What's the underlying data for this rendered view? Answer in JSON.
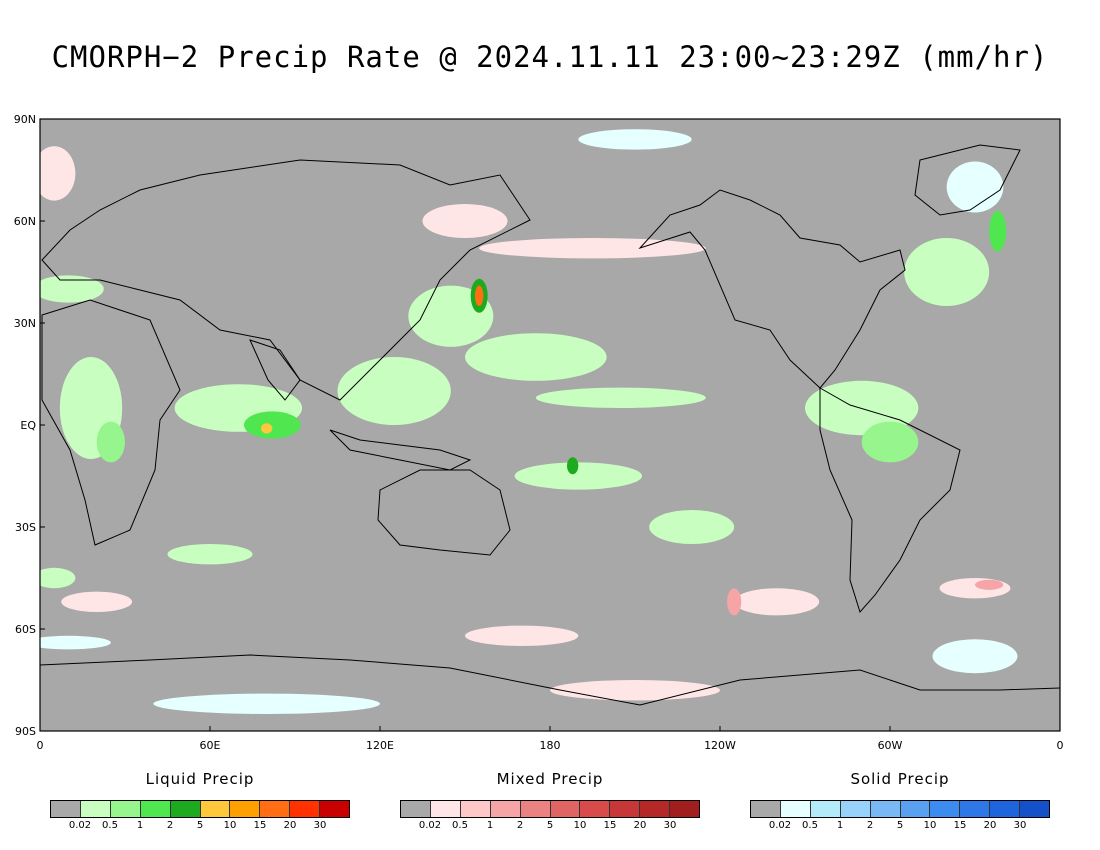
{
  "title": "CMORPH−2 Precip Rate @ 2024.11.11 23:00~23:29Z (mm/hr)",
  "lat_labels": [
    "90N",
    "60N",
    "30N",
    "EQ",
    "30S",
    "60S",
    "90S"
  ],
  "lon_labels": [
    "0",
    "60E",
    "120E",
    "180",
    "120W",
    "60W",
    "0"
  ],
  "colors": {
    "no_precip": "#a8a8a8",
    "land_outline": "#000000"
  },
  "legends": [
    {
      "title": "Liquid Precip",
      "colors": [
        "#a8a8a8",
        "#c8ffc0",
        "#96f58c",
        "#50e650",
        "#1eaa1e",
        "#ffc83c",
        "#ffa000",
        "#ff6e14",
        "#ff3200",
        "#c80000"
      ],
      "ticks": [
        "0.02",
        "0.5",
        "1",
        "2",
        "5",
        "10",
        "15",
        "20",
        "30"
      ]
    },
    {
      "title": "Mixed Precip",
      "colors": [
        "#a8a8a8",
        "#ffe6e6",
        "#ffc8c8",
        "#f5a5a5",
        "#eb8282",
        "#e16464",
        "#d74b4b",
        "#c83737",
        "#b42828",
        "#a01e1e"
      ],
      "ticks": [
        "0.02",
        "0.5",
        "1",
        "2",
        "5",
        "10",
        "15",
        "20",
        "30"
      ]
    },
    {
      "title": "Solid Precip",
      "colors": [
        "#a8a8a8",
        "#e6ffff",
        "#b4ebfa",
        "#96d2fa",
        "#78b9f5",
        "#5aa0f0",
        "#3c8cf0",
        "#2d78e6",
        "#1e64dc",
        "#1450c8"
      ],
      "ticks": [
        "0.02",
        "0.5",
        "1",
        "2",
        "5",
        "10",
        "15",
        "20",
        "30"
      ]
    }
  ],
  "precip_regions": [
    {
      "type": "liquid",
      "level": 1,
      "lon": 18,
      "lat": 5,
      "w": 22,
      "h": 30
    },
    {
      "type": "liquid",
      "level": 2,
      "lon": 25,
      "lat": -5,
      "w": 10,
      "h": 12
    },
    {
      "type": "liquid",
      "level": 1,
      "lon": 70,
      "lat": 5,
      "w": 45,
      "h": 14
    },
    {
      "type": "liquid",
      "level": 3,
      "lon": 82,
      "lat": 0,
      "w": 20,
      "h": 8
    },
    {
      "type": "liquid",
      "level": 5,
      "lon": 80,
      "lat": -1,
      "w": 4,
      "h": 3
    },
    {
      "type": "liquid",
      "level": 1,
      "lon": 125,
      "lat": 10,
      "w": 40,
      "h": 20
    },
    {
      "type": "liquid",
      "level": 1,
      "lon": 145,
      "lat": 32,
      "w": 30,
      "h": 18
    },
    {
      "type": "liquid",
      "level": 4,
      "lon": 155,
      "lat": 38,
      "w": 6,
      "h": 10
    },
    {
      "type": "liquid",
      "level": 7,
      "lon": 155,
      "lat": 38,
      "w": 3,
      "h": 6
    },
    {
      "type": "liquid",
      "level": 1,
      "lon": 175,
      "lat": 20,
      "w": 50,
      "h": 14
    },
    {
      "type": "liquid",
      "level": 1,
      "lon": 205,
      "lat": 8,
      "w": 60,
      "h": 6
    },
    {
      "type": "liquid",
      "level": 1,
      "lon": 190,
      "lat": -15,
      "w": 45,
      "h": 8
    },
    {
      "type": "liquid",
      "level": 4,
      "lon": 188,
      "lat": -12,
      "w": 4,
      "h": 5
    },
    {
      "type": "liquid",
      "level": 1,
      "lon": 230,
      "lat": -30,
      "w": 30,
      "h": 10
    },
    {
      "type": "liquid",
      "level": 1,
      "lon": 290,
      "lat": 5,
      "w": 40,
      "h": 16
    },
    {
      "type": "liquid",
      "level": 2,
      "lon": 300,
      "lat": -5,
      "w": 20,
      "h": 12
    },
    {
      "type": "liquid",
      "level": 1,
      "lon": 320,
      "lat": 45,
      "w": 30,
      "h": 20
    },
    {
      "type": "liquid",
      "level": 3,
      "lon": 338,
      "lat": 57,
      "w": 6,
      "h": 12
    },
    {
      "type": "liquid",
      "level": 1,
      "lon": 10,
      "lat": 40,
      "w": 25,
      "h": 8
    },
    {
      "type": "liquid",
      "level": 1,
      "lon": 60,
      "lat": -38,
      "w": 30,
      "h": 6
    },
    {
      "type": "liquid",
      "level": 1,
      "lon": 5,
      "lat": -45,
      "w": 15,
      "h": 6
    },
    {
      "type": "mixed",
      "level": 1,
      "lon": 260,
      "lat": -52,
      "w": 30,
      "h": 8
    },
    {
      "type": "mixed",
      "level": 3,
      "lon": 245,
      "lat": -52,
      "w": 5,
      "h": 8
    },
    {
      "type": "mixed",
      "level": 1,
      "lon": 330,
      "lat": -48,
      "w": 25,
      "h": 6
    },
    {
      "type": "mixed",
      "level": 3,
      "lon": 335,
      "lat": -47,
      "w": 10,
      "h": 3
    },
    {
      "type": "mixed",
      "level": 1,
      "lon": 20,
      "lat": -52,
      "w": 25,
      "h": 6
    },
    {
      "type": "mixed",
      "level": 1,
      "lon": 195,
      "lat": 52,
      "w": 80,
      "h": 6
    },
    {
      "type": "mixed",
      "level": 1,
      "lon": 150,
      "lat": 60,
      "w": 30,
      "h": 10
    },
    {
      "type": "mixed",
      "level": 1,
      "lon": 5,
      "lat": 74,
      "w": 15,
      "h": 16
    },
    {
      "type": "mixed",
      "level": 1,
      "lon": 170,
      "lat": -62,
      "w": 40,
      "h": 6
    },
    {
      "type": "mixed",
      "level": 1,
      "lon": 210,
      "lat": -78,
      "w": 60,
      "h": 6
    },
    {
      "type": "solid",
      "level": 1,
      "lon": 210,
      "lat": 84,
      "w": 40,
      "h": 6
    },
    {
      "type": "solid",
      "level": 1,
      "lon": 330,
      "lat": 70,
      "w": 20,
      "h": 15
    },
    {
      "type": "solid",
      "level": 1,
      "lon": 80,
      "lat": -82,
      "w": 80,
      "h": 6
    },
    {
      "type": "solid",
      "level": 1,
      "lon": 330,
      "lat": -68,
      "w": 30,
      "h": 10
    },
    {
      "type": "solid",
      "level": 1,
      "lon": 10,
      "lat": -64,
      "w": 30,
      "h": 4
    }
  ]
}
